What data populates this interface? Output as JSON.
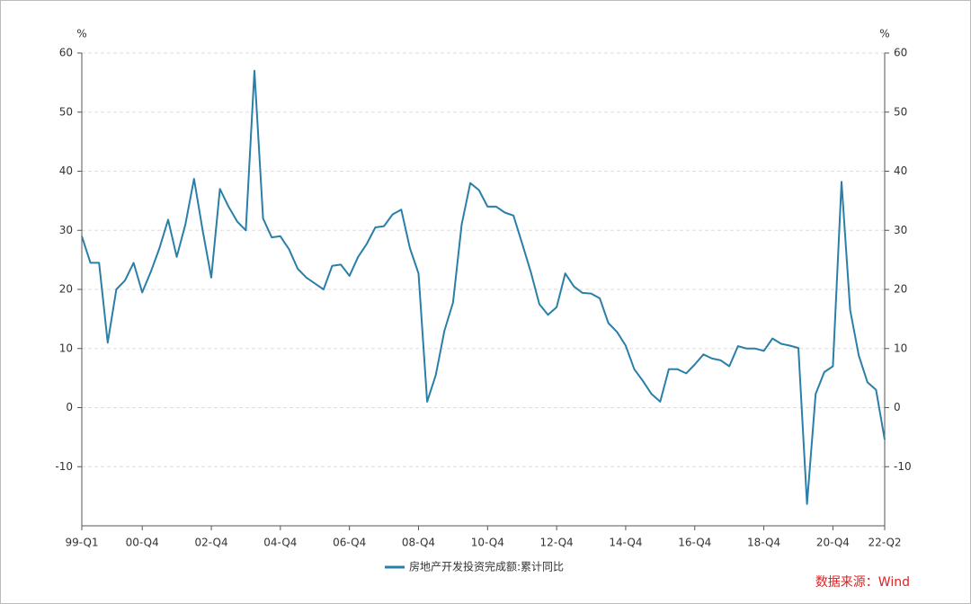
{
  "chart_data": {
    "type": "line",
    "y_unit": "%",
    "y2_unit": "%",
    "categories": [
      "99-Q1",
      null,
      null,
      null,
      null,
      null,
      null,
      "00-Q4",
      null,
      null,
      null,
      null,
      null,
      null,
      null,
      "02-Q4",
      null,
      null,
      null,
      null,
      null,
      null,
      null,
      "04-Q4",
      null,
      null,
      null,
      null,
      null,
      null,
      null,
      "06-Q4",
      null,
      null,
      null,
      null,
      null,
      null,
      null,
      "08-Q4",
      null,
      null,
      null,
      null,
      null,
      null,
      null,
      "10-Q4",
      null,
      null,
      null,
      null,
      null,
      null,
      null,
      "12-Q4",
      null,
      null,
      null,
      null,
      null,
      null,
      null,
      "14-Q4",
      null,
      null,
      null,
      null,
      null,
      null,
      null,
      "16-Q4",
      null,
      null,
      null,
      null,
      null,
      null,
      null,
      "18-Q4",
      null,
      null,
      null,
      null,
      null,
      null,
      null,
      "20-Q4",
      null,
      null,
      null,
      null,
      null,
      "22-Q2"
    ],
    "series": [
      {
        "name": "房地产开发投资完成额:累计同比",
        "color": "#2a7fa8",
        "values": [
          29,
          24.5,
          24.5,
          11,
          20,
          21.5,
          24.5,
          19.5,
          23,
          27,
          31.8,
          25.5,
          31,
          38.7,
          30,
          22,
          37,
          34,
          31.5,
          30,
          57,
          32,
          28.8,
          29,
          26.8,
          23.5,
          22,
          21,
          20,
          24,
          24.2,
          22.3,
          25.5,
          27.7,
          30.5,
          30.7,
          32.7,
          33.5,
          27,
          22.7,
          1,
          5.5,
          13,
          17.8,
          31,
          38,
          36.8,
          34,
          34,
          33,
          32.5,
          27.8,
          23,
          17.5,
          15.7,
          17,
          22.7,
          20.5,
          19.4,
          19.3,
          18.5,
          14.3,
          12.8,
          10.5,
          6.5,
          4.5,
          2.3,
          1,
          6.5,
          6.5,
          5.8,
          7.3,
          9,
          8.3,
          8,
          7,
          10.4,
          10,
          10,
          9.6,
          11.7,
          10.8,
          10.5,
          10.1,
          -16.3,
          2.3,
          6,
          7,
          38.2,
          16.5,
          8.8,
          4.3,
          3,
          -5.4
        ]
      }
    ],
    "ylim": [
      -20,
      60
    ],
    "yticks": [
      -10,
      0,
      10,
      20,
      30,
      40,
      50,
      60
    ],
    "y2lim": [
      -20,
      60
    ],
    "y2ticks": [
      -10,
      0,
      10,
      20,
      30,
      40,
      50,
      60
    ],
    "grid": true,
    "legend": "bottom",
    "source": "数据来源：Wind",
    "source_color": "#e02020"
  }
}
